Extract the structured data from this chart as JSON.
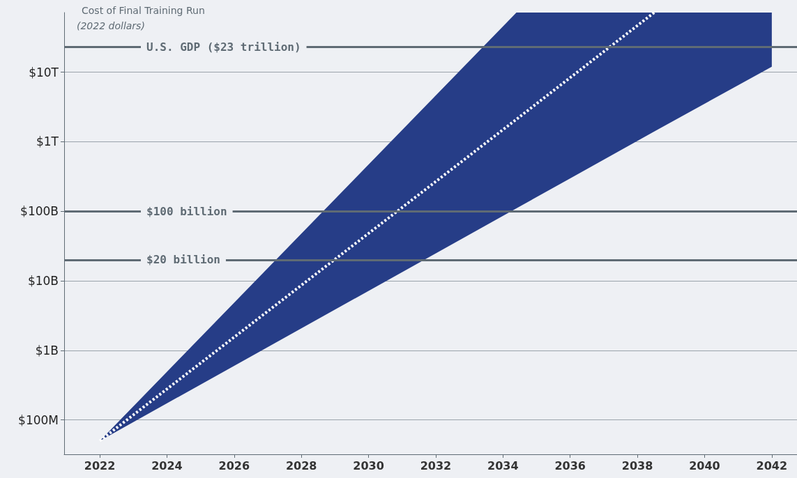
{
  "chart_data": {
    "type": "line",
    "ylabel": "Cost of Final Training Run",
    "subtitle": "(2022 dollars)",
    "xlim": [
      2020.94,
      2042.75
    ],
    "xticks": [
      2022,
      2024,
      2026,
      2028,
      2030,
      2032,
      2034,
      2036,
      2038,
      2040,
      2042
    ],
    "ylim": [
      32000000,
      72000000000000
    ],
    "log": "y",
    "grid": "y",
    "yticks": [
      {
        "value": 100000000,
        "label": "$100M"
      },
      {
        "value": 1000000000,
        "label": "$1B"
      },
      {
        "value": 10000000000,
        "label": "$10B"
      },
      {
        "value": 100000000000,
        "label": "$100B"
      },
      {
        "value": 1000000000000,
        "label": "$1T"
      },
      {
        "value": 10000000000000,
        "label": "$10T"
      }
    ],
    "series": [
      {
        "color": "#ffffff",
        "colors": [
          "#263d87",
          "#263d87",
          "#263d87",
          "#263d87"
        ],
        "line_style": "dotted",
        "x": [
          2022,
          2034.4,
          2038.5,
          2042
        ],
        "values": [
          50000000,
          2100000000000,
          72000000000000,
          null
        ],
        "lower": [
          50000000,
          110000000000,
          1400000000000,
          12000000000000
        ],
        "upper": [
          50000000,
          72000000000000,
          72000000000000,
          72000000000000
        ]
      }
    ],
    "ref_lines": [
      {
        "axis": "y",
        "value": 23000000000000,
        "label": "U.S. GDP ($23 trillion)",
        "color": "#5f6b74"
      },
      {
        "axis": "y",
        "value": 100000000000,
        "label": "$100 billion",
        "color": "#5f6b74"
      },
      {
        "axis": "y",
        "value": 20000000000,
        "label": "$20 billion",
        "color": "#5f6b74"
      }
    ]
  }
}
